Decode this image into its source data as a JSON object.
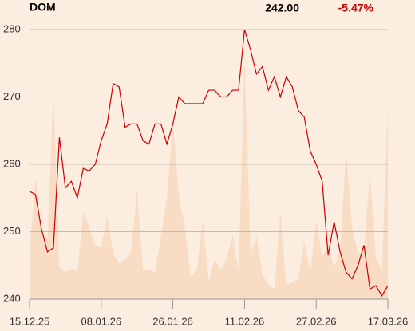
{
  "chart_data": {
    "type": "line",
    "title": "DOM",
    "price": "242.00",
    "change": "-5.47%",
    "change_color": "#cc0000",
    "categories": [
      "15.12.25",
      null,
      null,
      null,
      null,
      null,
      null,
      null,
      null,
      null,
      null,
      null,
      "08.01.26",
      null,
      null,
      null,
      null,
      null,
      null,
      null,
      null,
      null,
      null,
      null,
      "26.01.26",
      null,
      null,
      null,
      null,
      null,
      null,
      null,
      null,
      null,
      null,
      null,
      "11.02.26",
      null,
      null,
      null,
      null,
      null,
      null,
      null,
      null,
      null,
      null,
      null,
      "27.02.26",
      null,
      null,
      null,
      null,
      null,
      null,
      null,
      null,
      null,
      null,
      null,
      "17.03.26"
    ],
    "series": [
      {
        "color": "#cc0000",
        "values": [
          256,
          255.5,
          250.4,
          247,
          247.6,
          264,
          256.5,
          257.5,
          255,
          259.4,
          259,
          260,
          263.5,
          266,
          272,
          271.5,
          265.5,
          266,
          266,
          263.5,
          263,
          266,
          266,
          263,
          266,
          270,
          269,
          269,
          269,
          269,
          271,
          271,
          270,
          270,
          271,
          271,
          280,
          277,
          273.4,
          274.5,
          271,
          273,
          270,
          273,
          271.5,
          268,
          267,
          262,
          260,
          257.5,
          246.5,
          251.5,
          247,
          244,
          243,
          245,
          248,
          241.5,
          242,
          240.5,
          242
        ]
      }
    ],
    "area": {
      "color": "#f9dcc4",
      "values": [
        246.3,
        258.3,
        250,
        248.9,
        270.8,
        244.7,
        244.1,
        244.5,
        244.1,
        252.8,
        250.7,
        247.9,
        247.7,
        252.2,
        246.7,
        245.3,
        245.8,
        247.1,
        256.2,
        244.4,
        244.4,
        243.9,
        249.5,
        255,
        266.4,
        255.4,
        250.7,
        243.3,
        244.4,
        251.8,
        242.7,
        245.9,
        244.4,
        245.9,
        249.5,
        244.1,
        275.5,
        246.7,
        249.3,
        243.6,
        242.2,
        241.5,
        252.9,
        242,
        242.5,
        243,
        248.6,
        244.1,
        251.6,
        246.2,
        248.2,
        244.7,
        247.1,
        262.1,
        250.7,
        246.7,
        247.4,
        258.9,
        246.2,
        244.1,
        268.4
      ]
    },
    "ylim": [
      240,
      280
    ],
    "yticks": [
      240,
      250,
      260,
      270,
      280
    ],
    "grid": true
  }
}
